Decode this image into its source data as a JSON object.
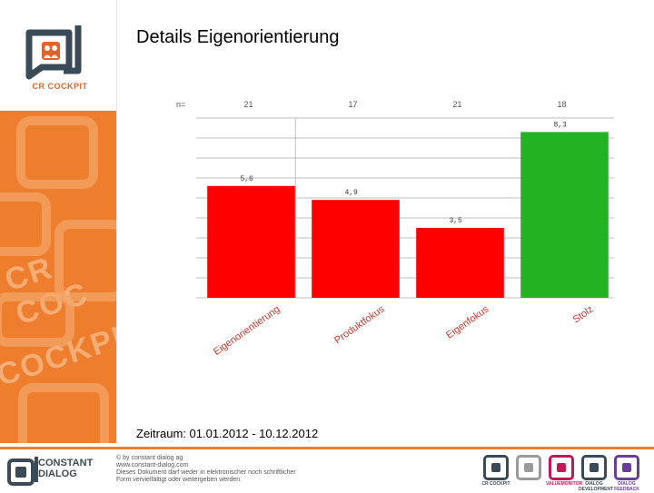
{
  "page": {
    "title": "Details Eigenorientierung",
    "period": "Zeitraum: 01.01.2012 - 10.12.2012"
  },
  "logo": {
    "text": "CR COCKPIT",
    "color": "#3b4a57",
    "accent": "#e0632a"
  },
  "footer": {
    "company_line1": "CONSTANT",
    "company_line2": "DIALOG",
    "copyright": "© by constant dialog ag",
    "website": "www.constant-dialog.com",
    "notice1": "Dieses Dokument darf weder in elektronischer noch schriftlicher",
    "notice2": "Form vervielfältigt oder weitergeben werden.",
    "brands": [
      {
        "label": "CR COCKPIT",
        "color": "#3b4a57"
      },
      {
        "label": "",
        "color": "#9a9a9a"
      },
      {
        "label": "VALUEMONITOR",
        "color": "#c2185b"
      },
      {
        "label": "DIALOG DEVELOPMENT",
        "color": "#3b4a57"
      },
      {
        "label": "DIALOG FEEDBACK",
        "color": "#6a3d9a"
      }
    ]
  },
  "chart_data": {
    "type": "bar",
    "n_label": "n=",
    "categories": [
      "Eigenorientierung",
      "Produktfokus",
      "Eigenfokus",
      "Stolz"
    ],
    "n_values": [
      "21",
      "17",
      "21",
      "18"
    ],
    "values": [
      5.6,
      4.9,
      3.5,
      8.3
    ],
    "value_labels": [
      "5,6",
      "4,9",
      "3,5",
      "8,3"
    ],
    "colors": [
      "#ff0000",
      "#ff0000",
      "#ff0000",
      "#22b322"
    ],
    "ylim": [
      0,
      9
    ],
    "grid": true,
    "title": "",
    "xlabel": "",
    "ylabel": ""
  }
}
